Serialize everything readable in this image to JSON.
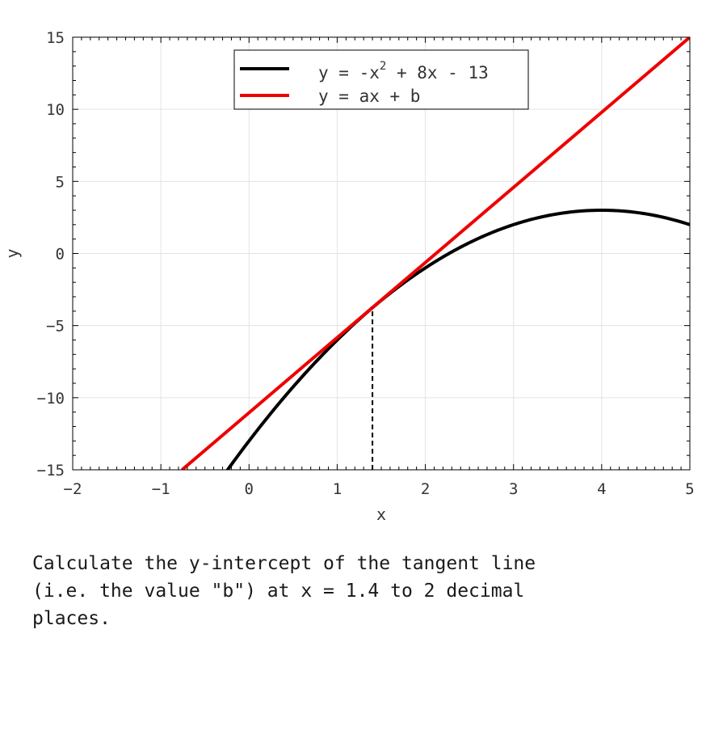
{
  "chart_data": {
    "type": "line",
    "xlabel": "x",
    "ylabel": "y",
    "xlim": [
      -2,
      5
    ],
    "ylim": [
      -15,
      15
    ],
    "xticks": [
      -2,
      -1,
      0,
      1,
      2,
      3,
      4,
      5
    ],
    "yticks": [
      -15,
      -10,
      -5,
      0,
      5,
      10,
      15
    ],
    "xtick_labels": [
      "−2",
      "−1",
      "0",
      "1",
      "2",
      "3",
      "4",
      "5"
    ],
    "ytick_labels": [
      "−15",
      "−10",
      "−5",
      "0",
      "5",
      "10",
      "15"
    ],
    "grid": true,
    "legend_position": "top-center",
    "series": [
      {
        "name": "y = -x^2 + 8x - 13",
        "legend_parts": [
          "y = -x",
          "2",
          " + 8x - 13"
        ],
        "kind": "curve",
        "color": "#000000",
        "coefficients": [
          -1,
          8,
          -13
        ]
      },
      {
        "name": "y = ax + b",
        "legend_parts": [
          "y = ax + b"
        ],
        "kind": "line",
        "color": "#ee0000",
        "x": [
          -0.76,
          5
        ],
        "y": [
          -15,
          15
        ]
      }
    ],
    "marker": {
      "type": "vertical-dashed",
      "x": 1.4,
      "y_from": -15,
      "y_to": -3.76,
      "color": "#000000"
    }
  },
  "question": {
    "text": "Calculate the y-intercept of the tangent line\n(i.e. the value \"b\") at x = 1.4 to 2 decimal\nplaces."
  }
}
